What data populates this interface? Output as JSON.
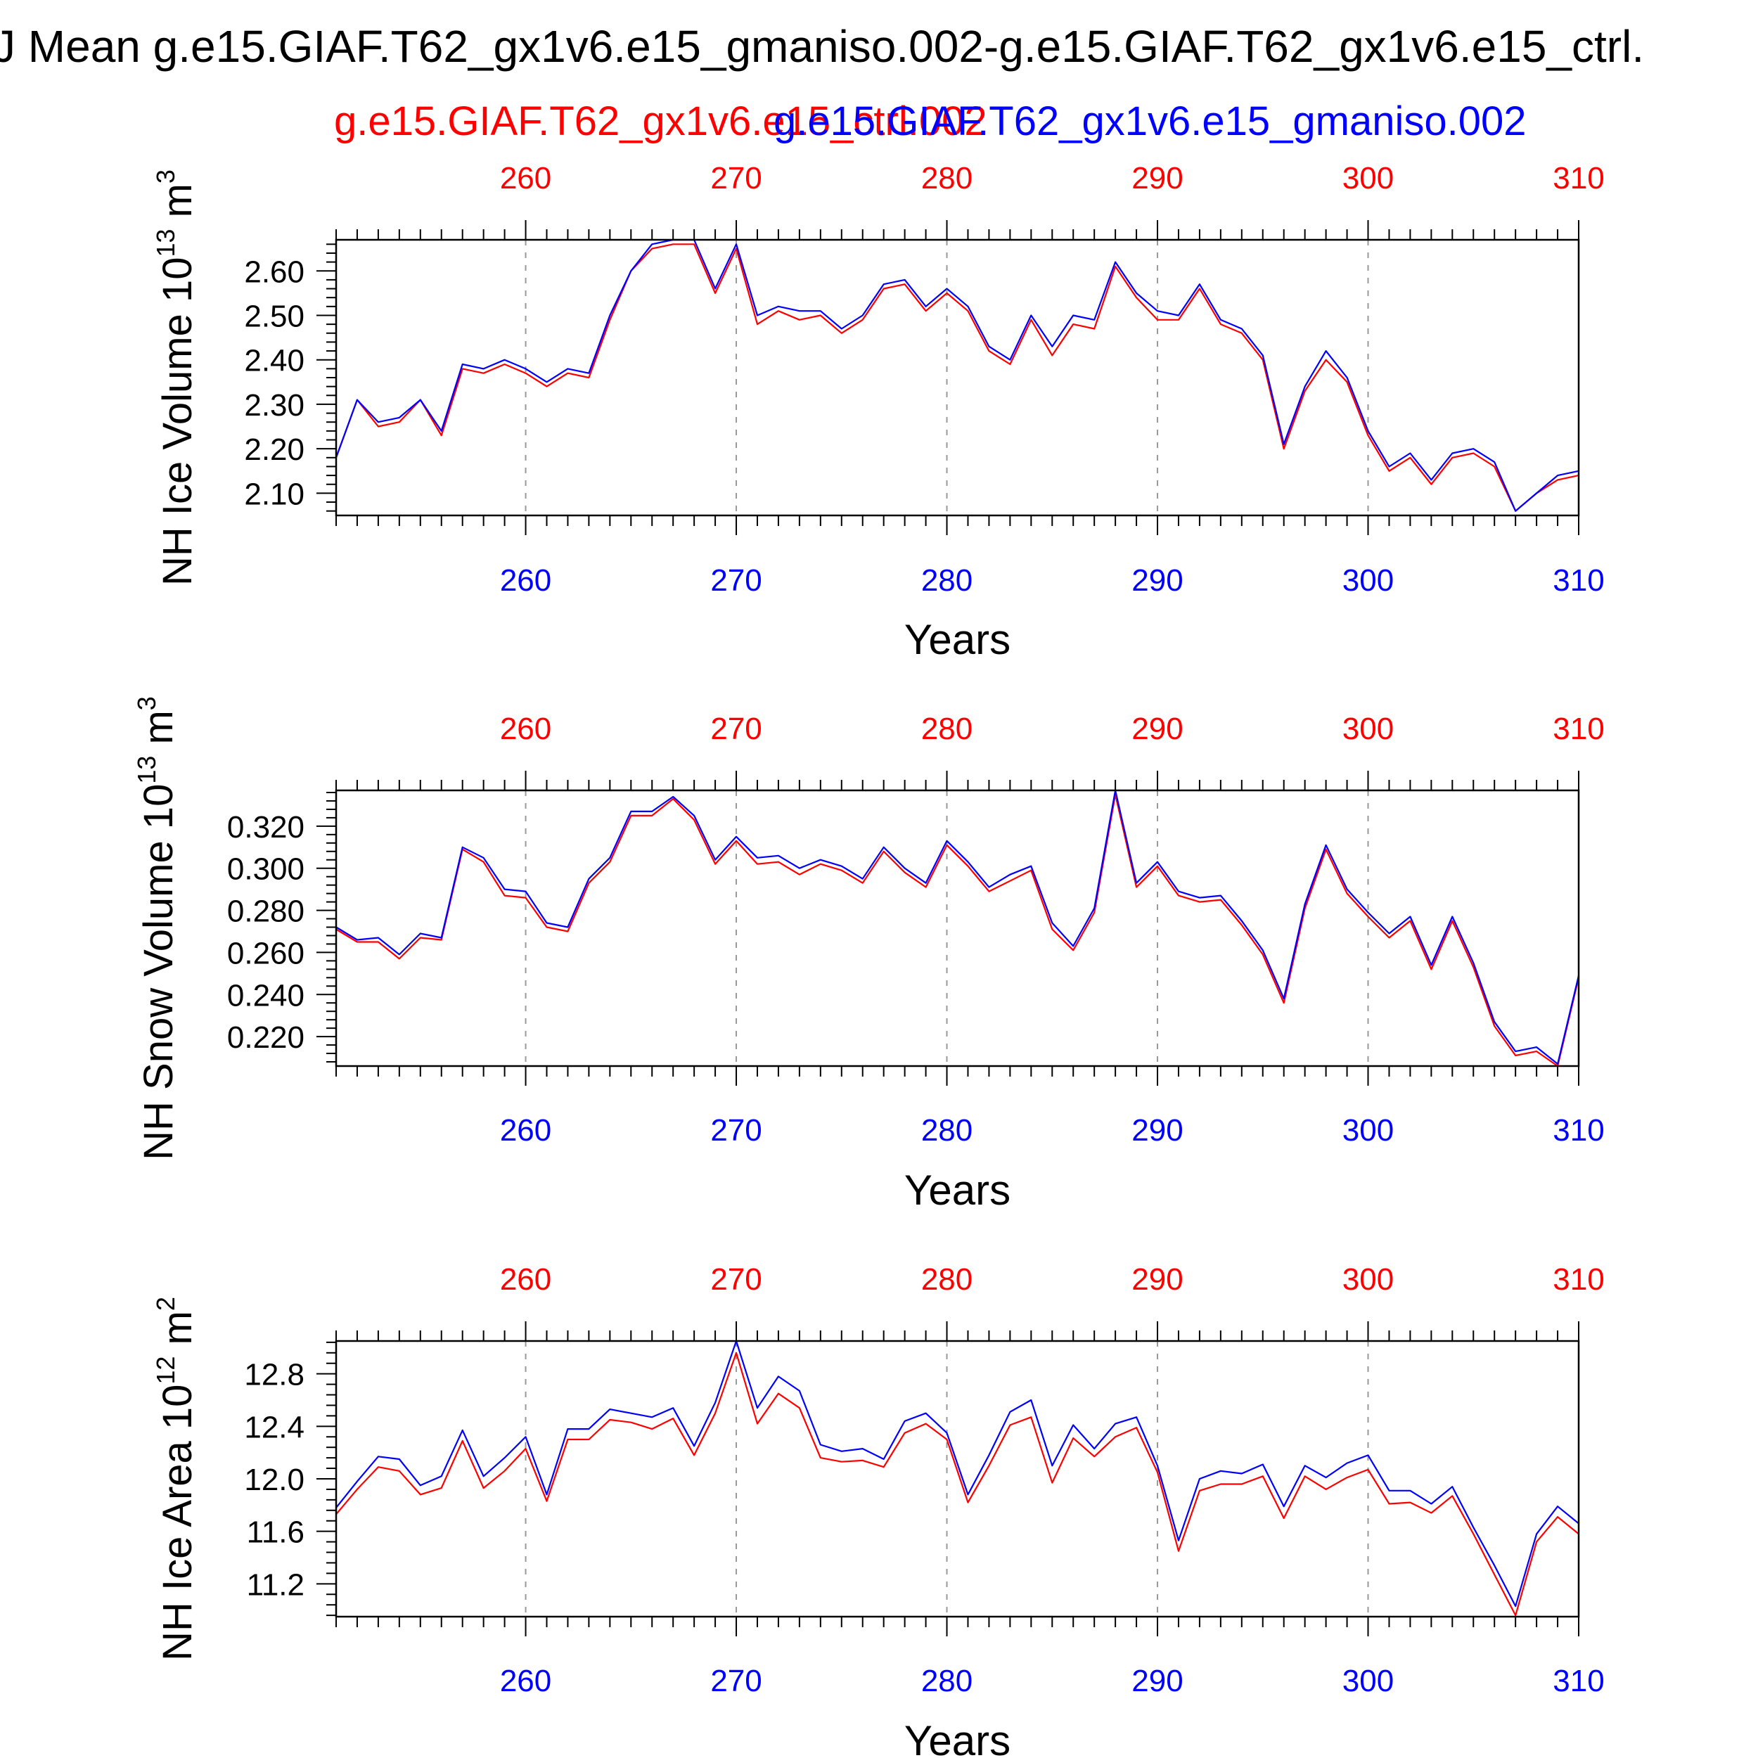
{
  "title": "J Mean g.e15.GIAF.T62_gx1v6.e15_gmaniso.002-g.e15.GIAF.T62_gx1v6.e15_ctrl.",
  "legend": {
    "red_label": "g.e15.GIAF.T62_gx1v6.e15_ctrl.002",
    "blue_label": "g.e15.GIAF.T62_gx1v6.e15_gmaniso.002"
  },
  "colors": {
    "ctrl": "#ff0000",
    "gmaniso": "#0000ff",
    "axis": "#000000",
    "grid": "#999999"
  },
  "chart_data": [
    {
      "type": "line",
      "ylabel": "NH Ice Volume 10",
      "ylabel_exp": "13",
      "ylabel_unit": " m",
      "ylabel_unit_exp": "3",
      "xlabel": "Years",
      "xlim": [
        251,
        310
      ],
      "ylim": [
        2.05,
        2.67
      ],
      "yticks": [
        2.1,
        2.2,
        2.3,
        2.4,
        2.5,
        2.6
      ],
      "ytick_labels": [
        "2.10",
        "2.20",
        "2.30",
        "2.40",
        "2.50",
        "2.60"
      ],
      "xticks": [
        260,
        270,
        280,
        290,
        300,
        310
      ],
      "xtick_labels": [
        "260",
        "270",
        "280",
        "290",
        "300",
        "310"
      ],
      "grid": "vertical dashed at major x ticks",
      "x": [
        251,
        252,
        253,
        254,
        255,
        256,
        257,
        258,
        259,
        260,
        261,
        262,
        263,
        264,
        265,
        266,
        267,
        268,
        269,
        270,
        271,
        272,
        273,
        274,
        275,
        276,
        277,
        278,
        279,
        280,
        281,
        282,
        283,
        284,
        285,
        286,
        287,
        288,
        289,
        290,
        291,
        292,
        293,
        294,
        295,
        296,
        297,
        298,
        299,
        300,
        301,
        302,
        303,
        304,
        305,
        306,
        307,
        308,
        309,
        310
      ],
      "series": [
        {
          "name": "g.e15.GIAF.T62_gx1v6.e15_ctrl.002",
          "color": "red",
          "values": [
            2.18,
            2.31,
            2.25,
            2.26,
            2.31,
            2.23,
            2.38,
            2.37,
            2.39,
            2.37,
            2.34,
            2.37,
            2.36,
            2.49,
            2.6,
            2.65,
            2.66,
            2.66,
            2.55,
            2.65,
            2.48,
            2.51,
            2.49,
            2.5,
            2.46,
            2.49,
            2.56,
            2.57,
            2.51,
            2.55,
            2.51,
            2.42,
            2.39,
            2.49,
            2.41,
            2.48,
            2.47,
            2.61,
            2.54,
            2.49,
            2.49,
            2.56,
            2.48,
            2.46,
            2.4,
            2.2,
            2.33,
            2.4,
            2.35,
            2.23,
            2.15,
            2.18,
            2.12,
            2.18,
            2.19,
            2.16,
            2.06,
            2.1,
            2.13,
            2.14
          ]
        },
        {
          "name": "g.e15.GIAF.T62_gx1v6.e15_gmaniso.002",
          "color": "blue",
          "values": [
            2.18,
            2.31,
            2.26,
            2.27,
            2.31,
            2.24,
            2.39,
            2.38,
            2.4,
            2.38,
            2.35,
            2.38,
            2.37,
            2.5,
            2.6,
            2.66,
            2.67,
            2.67,
            2.56,
            2.66,
            2.5,
            2.52,
            2.51,
            2.51,
            2.47,
            2.5,
            2.57,
            2.58,
            2.52,
            2.56,
            2.52,
            2.43,
            2.4,
            2.5,
            2.43,
            2.5,
            2.49,
            2.62,
            2.55,
            2.51,
            2.5,
            2.57,
            2.49,
            2.47,
            2.41,
            2.21,
            2.34,
            2.42,
            2.36,
            2.24,
            2.16,
            2.19,
            2.13,
            2.19,
            2.2,
            2.17,
            2.06,
            2.1,
            2.14,
            2.15
          ]
        }
      ]
    },
    {
      "type": "line",
      "ylabel": "NH Snow Volume 10",
      "ylabel_exp": "13",
      "ylabel_unit": " m",
      "ylabel_unit_exp": "3",
      "xlabel": "Years",
      "xlim": [
        251,
        310
      ],
      "ylim": [
        0.206,
        0.337
      ],
      "yticks": [
        0.22,
        0.24,
        0.26,
        0.28,
        0.3,
        0.32
      ],
      "ytick_labels": [
        "0.220",
        "0.240",
        "0.260",
        "0.280",
        "0.300",
        "0.320"
      ],
      "xticks": [
        260,
        270,
        280,
        290,
        300,
        310
      ],
      "xtick_labels": [
        "260",
        "270",
        "280",
        "290",
        "300",
        "310"
      ],
      "grid": "vertical dashed at major x ticks",
      "x": [
        251,
        252,
        253,
        254,
        255,
        256,
        257,
        258,
        259,
        260,
        261,
        262,
        263,
        264,
        265,
        266,
        267,
        268,
        269,
        270,
        271,
        272,
        273,
        274,
        275,
        276,
        277,
        278,
        279,
        280,
        281,
        282,
        283,
        284,
        285,
        286,
        287,
        288,
        289,
        290,
        291,
        292,
        293,
        294,
        295,
        296,
        297,
        298,
        299,
        300,
        301,
        302,
        303,
        304,
        305,
        306,
        307,
        308,
        309,
        310
      ],
      "series": [
        {
          "name": "g.e15.GIAF.T62_gx1v6.e15_ctrl.002",
          "color": "red",
          "values": [
            0.271,
            0.265,
            0.265,
            0.257,
            0.267,
            0.266,
            0.309,
            0.303,
            0.287,
            0.286,
            0.272,
            0.27,
            0.293,
            0.303,
            0.325,
            0.325,
            0.333,
            0.323,
            0.302,
            0.313,
            0.302,
            0.303,
            0.297,
            0.302,
            0.299,
            0.293,
            0.308,
            0.298,
            0.291,
            0.311,
            0.301,
            0.289,
            0.294,
            0.299,
            0.271,
            0.261,
            0.279,
            0.335,
            0.291,
            0.301,
            0.287,
            0.284,
            0.285,
            0.273,
            0.259,
            0.236,
            0.281,
            0.309,
            0.288,
            0.277,
            0.267,
            0.275,
            0.252,
            0.275,
            0.253,
            0.225,
            0.211,
            0.213,
            0.205,
            0.248
          ]
        },
        {
          "name": "g.e15.GIAF.T62_gx1v6.e15_gmaniso.002",
          "color": "blue",
          "values": [
            0.272,
            0.266,
            0.267,
            0.259,
            0.269,
            0.267,
            0.31,
            0.305,
            0.29,
            0.289,
            0.274,
            0.272,
            0.295,
            0.305,
            0.327,
            0.327,
            0.334,
            0.325,
            0.304,
            0.315,
            0.305,
            0.306,
            0.3,
            0.304,
            0.301,
            0.295,
            0.31,
            0.3,
            0.293,
            0.313,
            0.303,
            0.291,
            0.297,
            0.301,
            0.274,
            0.263,
            0.281,
            0.337,
            0.293,
            0.303,
            0.289,
            0.286,
            0.287,
            0.275,
            0.261,
            0.238,
            0.283,
            0.311,
            0.29,
            0.279,
            0.269,
            0.277,
            0.254,
            0.277,
            0.255,
            0.227,
            0.213,
            0.215,
            0.207,
            0.249
          ]
        }
      ]
    },
    {
      "type": "line",
      "ylabel": "NH Ice Area 10",
      "ylabel_exp": "12",
      "ylabel_unit": " m",
      "ylabel_unit_exp": "2",
      "xlabel": "Years",
      "xlim": [
        251,
        310
      ],
      "ylim": [
        10.95,
        13.05
      ],
      "yticks": [
        11.2,
        11.6,
        12.0,
        12.4,
        12.8
      ],
      "ytick_labels": [
        "11.2",
        "11.6",
        "12.0",
        "12.4",
        "12.8"
      ],
      "xticks": [
        260,
        270,
        280,
        290,
        300,
        310
      ],
      "xtick_labels": [
        "260",
        "270",
        "280",
        "290",
        "300",
        "310"
      ],
      "grid": "vertical dashed at major x ticks",
      "x": [
        251,
        252,
        253,
        254,
        255,
        256,
        257,
        258,
        259,
        260,
        261,
        262,
        263,
        264,
        265,
        266,
        267,
        268,
        269,
        270,
        271,
        272,
        273,
        274,
        275,
        276,
        277,
        278,
        279,
        280,
        281,
        282,
        283,
        284,
        285,
        286,
        287,
        288,
        289,
        290,
        291,
        292,
        293,
        294,
        295,
        296,
        297,
        298,
        299,
        300,
        301,
        302,
        303,
        304,
        305,
        306,
        307,
        308,
        309,
        310
      ],
      "series": [
        {
          "name": "g.e15.GIAF.T62_gx1v6.e15_ctrl.002",
          "color": "red",
          "values": [
            11.73,
            11.92,
            12.09,
            12.06,
            11.88,
            11.93,
            12.29,
            11.93,
            12.06,
            12.23,
            11.83,
            12.3,
            12.3,
            12.45,
            12.43,
            12.38,
            12.46,
            12.18,
            12.5,
            12.96,
            12.42,
            12.65,
            12.54,
            12.16,
            12.13,
            12.14,
            12.09,
            12.35,
            12.42,
            12.3,
            11.82,
            12.1,
            12.41,
            12.47,
            11.97,
            12.31,
            12.17,
            12.32,
            12.39,
            12.05,
            11.45,
            11.91,
            11.96,
            11.96,
            12.02,
            11.7,
            12.02,
            11.92,
            12.01,
            12.07,
            11.81,
            11.82,
            11.74,
            11.87,
            11.58,
            11.27,
            10.96,
            11.52,
            11.71,
            11.58
          ]
        },
        {
          "name": "g.e15.GIAF.T62_gx1v6.e15_gmaniso.002",
          "color": "blue",
          "values": [
            11.78,
            11.98,
            12.17,
            12.15,
            11.95,
            12.02,
            12.37,
            12.02,
            12.16,
            12.32,
            11.88,
            12.38,
            12.38,
            12.53,
            12.5,
            12.47,
            12.54,
            12.25,
            12.58,
            13.05,
            12.54,
            12.78,
            12.67,
            12.26,
            12.21,
            12.23,
            12.15,
            12.44,
            12.5,
            12.35,
            11.88,
            12.18,
            12.51,
            12.6,
            12.1,
            12.41,
            12.23,
            12.42,
            12.47,
            12.1,
            11.53,
            12.0,
            12.06,
            12.04,
            12.11,
            11.79,
            12.1,
            12.01,
            12.12,
            12.18,
            11.91,
            11.91,
            11.81,
            11.94,
            11.63,
            11.34,
            11.03,
            11.58,
            11.79,
            11.66
          ]
        }
      ]
    }
  ]
}
